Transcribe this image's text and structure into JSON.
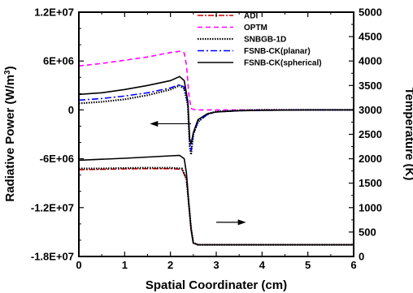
{
  "chart_data": {
    "type": "line",
    "title": "",
    "xlabel": "Spatial Coordinater (cm)",
    "ylabel_left": "Radiative Power (W/m³)",
    "ylabel_left_base": "Radiative Power (W/m",
    "ylabel_left_sup": "3",
    "ylabel_left_end": ")",
    "ylabel_right": "Temperature (K)",
    "xlim": [
      0,
      6
    ],
    "ylim_left": [
      -18000000,
      12000000
    ],
    "ylim_right": [
      0,
      5000
    ],
    "x_ticks": [
      0,
      1,
      2,
      3,
      4,
      5,
      6
    ],
    "x_tick_labels": [
      "0",
      "1",
      "2",
      "3",
      "4",
      "5",
      "6"
    ],
    "y_left_ticks": [
      -18000000,
      -12000000,
      -6000000,
      0,
      6000000,
      12000000
    ],
    "y_left_tick_labels": [
      "-1.8E+07",
      "-1.2E+07",
      "-6E+06",
      "0",
      "6E+06",
      "1.2E+07"
    ],
    "y_right_ticks": [
      0,
      500,
      1000,
      1500,
      2000,
      2500,
      3000,
      3500,
      4000,
      4500,
      5000
    ],
    "y_right_tick_labels": [
      "0",
      "500",
      "1000",
      "1500",
      "2000",
      "2500",
      "3000",
      "3500",
      "4000",
      "4500",
      "5000"
    ],
    "grid": false,
    "legend_position": "top-right",
    "series": [
      {
        "name": "ADI",
        "axis": "left",
        "color": "#cc0000",
        "dash": "7,2,2,2",
        "width": 1.6,
        "x": [
          0,
          0.5,
          1,
          1.5,
          2,
          2.25,
          2.35,
          2.4,
          2.45,
          2.5,
          2.6,
          3,
          4,
          5,
          6
        ],
        "y": [
          -7350000,
          -7300000,
          -7250000,
          -7220000,
          -7220000,
          -7300000,
          -8500000,
          -11500000,
          -14500000,
          -16300000,
          -16550000,
          -16550000,
          -16550000,
          -16550000,
          -16550000
        ]
      },
      {
        "name": "OPTM",
        "axis": "left",
        "color": "#ff00ff",
        "dash": "6,4",
        "width": 1.6,
        "x": [
          0,
          0.5,
          1,
          1.5,
          2,
          2.2,
          2.3,
          2.35,
          2.4,
          2.45,
          2.5,
          2.6,
          3,
          4,
          5,
          6
        ],
        "y": [
          5400000,
          5700000,
          6100000,
          6500000,
          7050000,
          7200000,
          7000000,
          5500000,
          2000000,
          200000,
          50000,
          0,
          0,
          0,
          0,
          0
        ]
      },
      {
        "name": "SNBGB-1D",
        "axis": "left",
        "color": "#000000",
        "dash": "1.5,1.5",
        "width": 2.2,
        "x": [
          0,
          0.5,
          1,
          1.5,
          2,
          2.2,
          2.3,
          2.38,
          2.42,
          2.45,
          2.5,
          2.6,
          2.8,
          3,
          3.5,
          4,
          5,
          6
        ],
        "y": [
          800000,
          1000000,
          1300000,
          1800000,
          2500000,
          3000000,
          2600000,
          500000,
          -4500000,
          -5500000,
          -3000000,
          -1500000,
          -500000,
          -200000,
          -50000,
          0,
          0,
          0
        ],
        "temp_x": [
          0,
          0.5,
          1,
          1.5,
          2,
          2.25,
          2.35,
          2.4,
          2.45,
          2.5,
          2.6,
          3,
          4,
          5,
          6
        ],
        "temp_y": [
          1800,
          1800,
          1810,
          1815,
          1815,
          1800,
          1580,
          1080,
          580,
          280,
          240,
          240,
          240,
          240,
          240
        ]
      },
      {
        "name": "FSNB-CK(planar)",
        "axis": "left",
        "color": "#0000ff",
        "dash": "8,3,2,3",
        "width": 1.6,
        "x": [
          0,
          0.5,
          1,
          1.5,
          2,
          2.2,
          2.3,
          2.38,
          2.42,
          2.45,
          2.5,
          2.6,
          2.8,
          3,
          3.5,
          4,
          5,
          6
        ],
        "y": [
          1200000,
          1400000,
          1700000,
          2100000,
          2700000,
          3100000,
          2800000,
          800000,
          -4000000,
          -5000000,
          -3000000,
          -1500000,
          -600000,
          -250000,
          -100000,
          -50000,
          0,
          0
        ]
      },
      {
        "name": "FSNB-CK(spherical)",
        "axis": "left",
        "color": "#000000",
        "dash": "",
        "width": 1.6,
        "x": [
          0,
          0.5,
          1,
          1.5,
          2,
          2.2,
          2.3,
          2.38,
          2.42,
          2.45,
          2.5,
          2.6,
          2.8,
          3,
          3.5,
          4,
          5,
          6
        ],
        "y": [
          1900000,
          2100000,
          2500000,
          3000000,
          3600000,
          4100000,
          3600000,
          1000000,
          -3500000,
          -4200000,
          -2800000,
          -1200000,
          -500000,
          -250000,
          -100000,
          -50000,
          0,
          0
        ],
        "temp_x": [
          0,
          0.5,
          1,
          1.5,
          2,
          2.2,
          2.3,
          2.35,
          2.4,
          2.45,
          2.5,
          2.6,
          3,
          4,
          5,
          6
        ],
        "temp_y": [
          1970,
          1990,
          2010,
          2035,
          2060,
          2070,
          2000,
          1700,
          1100,
          550,
          270,
          240,
          240,
          240,
          240,
          240
        ]
      }
    ],
    "annotations": [
      {
        "type": "arrow",
        "direction": "left",
        "axis_ref": "left",
        "x_from": 2.45,
        "x_to": 1.55,
        "y": -1700000
      },
      {
        "type": "arrow",
        "direction": "right",
        "axis_ref": "left",
        "x_from": 3.0,
        "x_to": 3.65,
        "y": -13800000
      }
    ]
  }
}
